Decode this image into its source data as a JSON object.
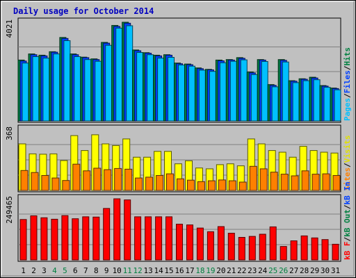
{
  "chart_data": {
    "type": "bar",
    "title": "Daily usage for October 2014",
    "categories": [
      "1",
      "2",
      "3",
      "4",
      "5",
      "6",
      "7",
      "8",
      "9",
      "10",
      "11",
      "12",
      "13",
      "14",
      "15",
      "16",
      "17",
      "18",
      "19",
      "20",
      "21",
      "22",
      "23",
      "24",
      "25",
      "26",
      "27",
      "28",
      "29",
      "30",
      "31"
    ],
    "weekend_days": [
      "4",
      "5",
      "11",
      "12",
      "18",
      "19",
      "25",
      "26"
    ],
    "panels": [
      {
        "id": "top",
        "max_label": "4021",
        "ymax": 4021,
        "right_labels": [
          {
            "text": "Hits",
            "color": "#008040"
          },
          {
            "text": "/",
            "color": "#000000"
          },
          {
            "text": "Files",
            "color": "#0040ff"
          },
          {
            "text": "/",
            "color": "#000000"
          },
          {
            "text": "Pages",
            "color": "#00c0ff"
          }
        ],
        "series": [
          {
            "name": "Hits",
            "color": "#008040",
            "values": [
              2480,
              2730,
              2680,
              2820,
              3400,
              2730,
              2600,
              2530,
              3200,
              3890,
              4021,
              2890,
              2780,
              2680,
              2700,
              2360,
              2320,
              2160,
              2100,
              2480,
              2500,
              2580,
              1990,
              2500,
              1480,
              2500,
              1640,
              1720,
              1780,
              1440,
              1340
            ]
          },
          {
            "name": "Files",
            "color": "#0040ff",
            "values": [
              2440,
              2700,
              2650,
              2800,
              3360,
              2700,
              2580,
              2500,
              3170,
              3850,
              3980,
              2860,
              2760,
              2650,
              2680,
              2330,
              2290,
              2130,
              2080,
              2450,
              2480,
              2550,
              1960,
              2480,
              1450,
              2470,
              1620,
              1700,
              1750,
              1420,
              1320
            ]
          },
          {
            "name": "Pages",
            "color": "#00c0ff",
            "values": [
              2360,
              2620,
              2560,
              2730,
              3270,
              2620,
              2500,
              2430,
              3080,
              3780,
              3880,
              2790,
              2700,
              2560,
              2590,
              2280,
              2230,
              2070,
              2020,
              2370,
              2430,
              2490,
              1890,
              2420,
              1390,
              2400,
              1560,
              1640,
              1680,
              1370,
              1270
            ]
          }
        ]
      },
      {
        "id": "middle",
        "max_label": "368",
        "ymax": 368,
        "right_labels": [
          {
            "text": "Visits",
            "color": "#e0e000"
          },
          {
            "text": "/",
            "color": "#000000"
          },
          {
            "text": "Sites",
            "color": "#ff8000"
          }
        ],
        "series": [
          {
            "name": "Visits",
            "color": "#ffff00",
            "values": [
              280,
              220,
              218,
              220,
              180,
              330,
              240,
              335,
              280,
              270,
              310,
              200,
              200,
              235,
              235,
              160,
              178,
              135,
              130,
              155,
              160,
              148,
              310,
              280,
              240,
              230,
              200,
              265,
              240,
              230,
              225
            ]
          },
          {
            "name": "Sites",
            "color": "#ff8000",
            "values": [
              120,
              108,
              90,
              75,
              60,
              158,
              118,
              134,
              125,
              132,
              128,
              75,
              80,
              90,
              100,
              70,
              62,
              53,
              58,
              63,
              58,
              50,
              145,
              130,
              110,
              98,
              88,
              118,
              98,
              100,
              90
            ]
          }
        ]
      },
      {
        "id": "bottom",
        "max_label": "249465",
        "ymax": 249465,
        "right_labels": [
          {
            "text": "kB In",
            "color": "#0040ff"
          },
          {
            "text": "/",
            "color": "#000000"
          },
          {
            "text": "kB Out",
            "color": "#008040"
          },
          {
            "text": "/",
            "color": "#000000"
          },
          {
            "text": "kB F",
            "color": "#ff0000"
          }
        ],
        "series": [
          {
            "name": "kB F",
            "color": "#ff0000",
            "values": [
              165000,
              180000,
              172000,
              166000,
              181000,
              168000,
              176000,
              175000,
              210000,
              249465,
              245000,
              176000,
              176000,
              176000,
              176000,
              146000,
              143000,
              130000,
              115000,
              136000,
              109000,
              92000,
              96000,
              105000,
              135000,
              55000,
              78000,
              98000,
              90000,
              83000,
              64000
            ]
          }
        ]
      }
    ]
  }
}
